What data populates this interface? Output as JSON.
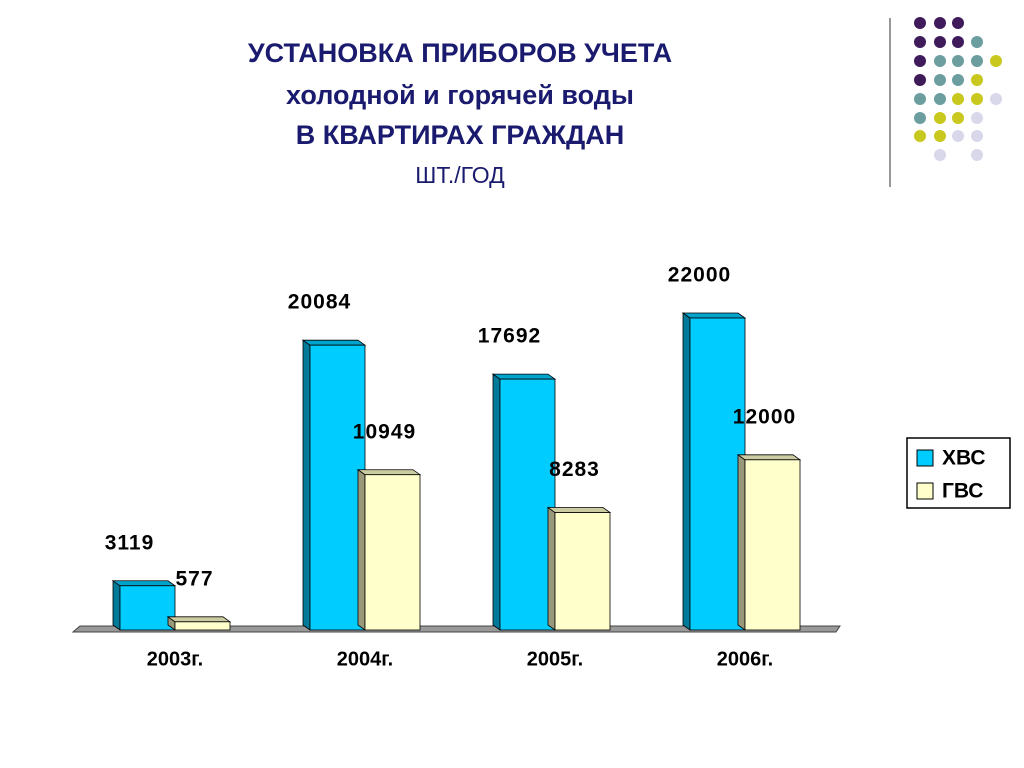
{
  "chart_data": {
    "type": "bar3d",
    "title": [
      "УСТАНОВКА ПРИБОРОВ УЧЕТА",
      "холодной и горячей воды",
      "В КВАРТИРАХ ГРАЖДАН"
    ],
    "subtitle": "ШТ./ГОД",
    "categories": [
      "2003г.",
      "2004г.",
      "2005г.",
      "2006г."
    ],
    "series": [
      {
        "name": "ХВС",
        "color": "#00ccff",
        "values": [
          3119,
          20084,
          17692,
          22000
        ]
      },
      {
        "name": "ГВС",
        "color": "#ffffcc",
        "values": [
          577,
          10949,
          8283,
          12000
        ]
      }
    ],
    "legend": "right"
  }
}
